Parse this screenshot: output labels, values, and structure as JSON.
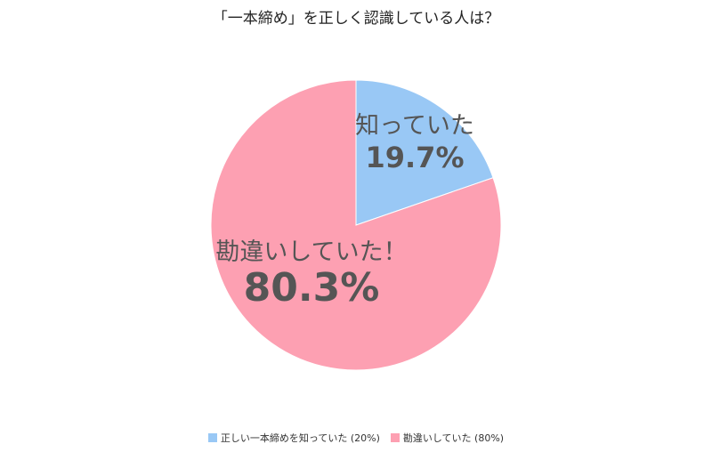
{
  "chart_data": {
    "type": "pie",
    "title": "「一本締め」を正しく認識している人は？",
    "slices": [
      {
        "label": "知っていた",
        "value": 19.7,
        "value_text": "19.7%",
        "color": "#99c8f5",
        "legend": "正しい一本締めを知っていた (20%)"
      },
      {
        "label": "勘違いしていた！",
        "value": 80.3,
        "value_text": "80.3%",
        "color": "#fda0b2",
        "legend": "勘違いしていた (80%)"
      }
    ],
    "start_angle": "12 o'clock",
    "direction": "clockwise",
    "legend_position": "bottom"
  }
}
